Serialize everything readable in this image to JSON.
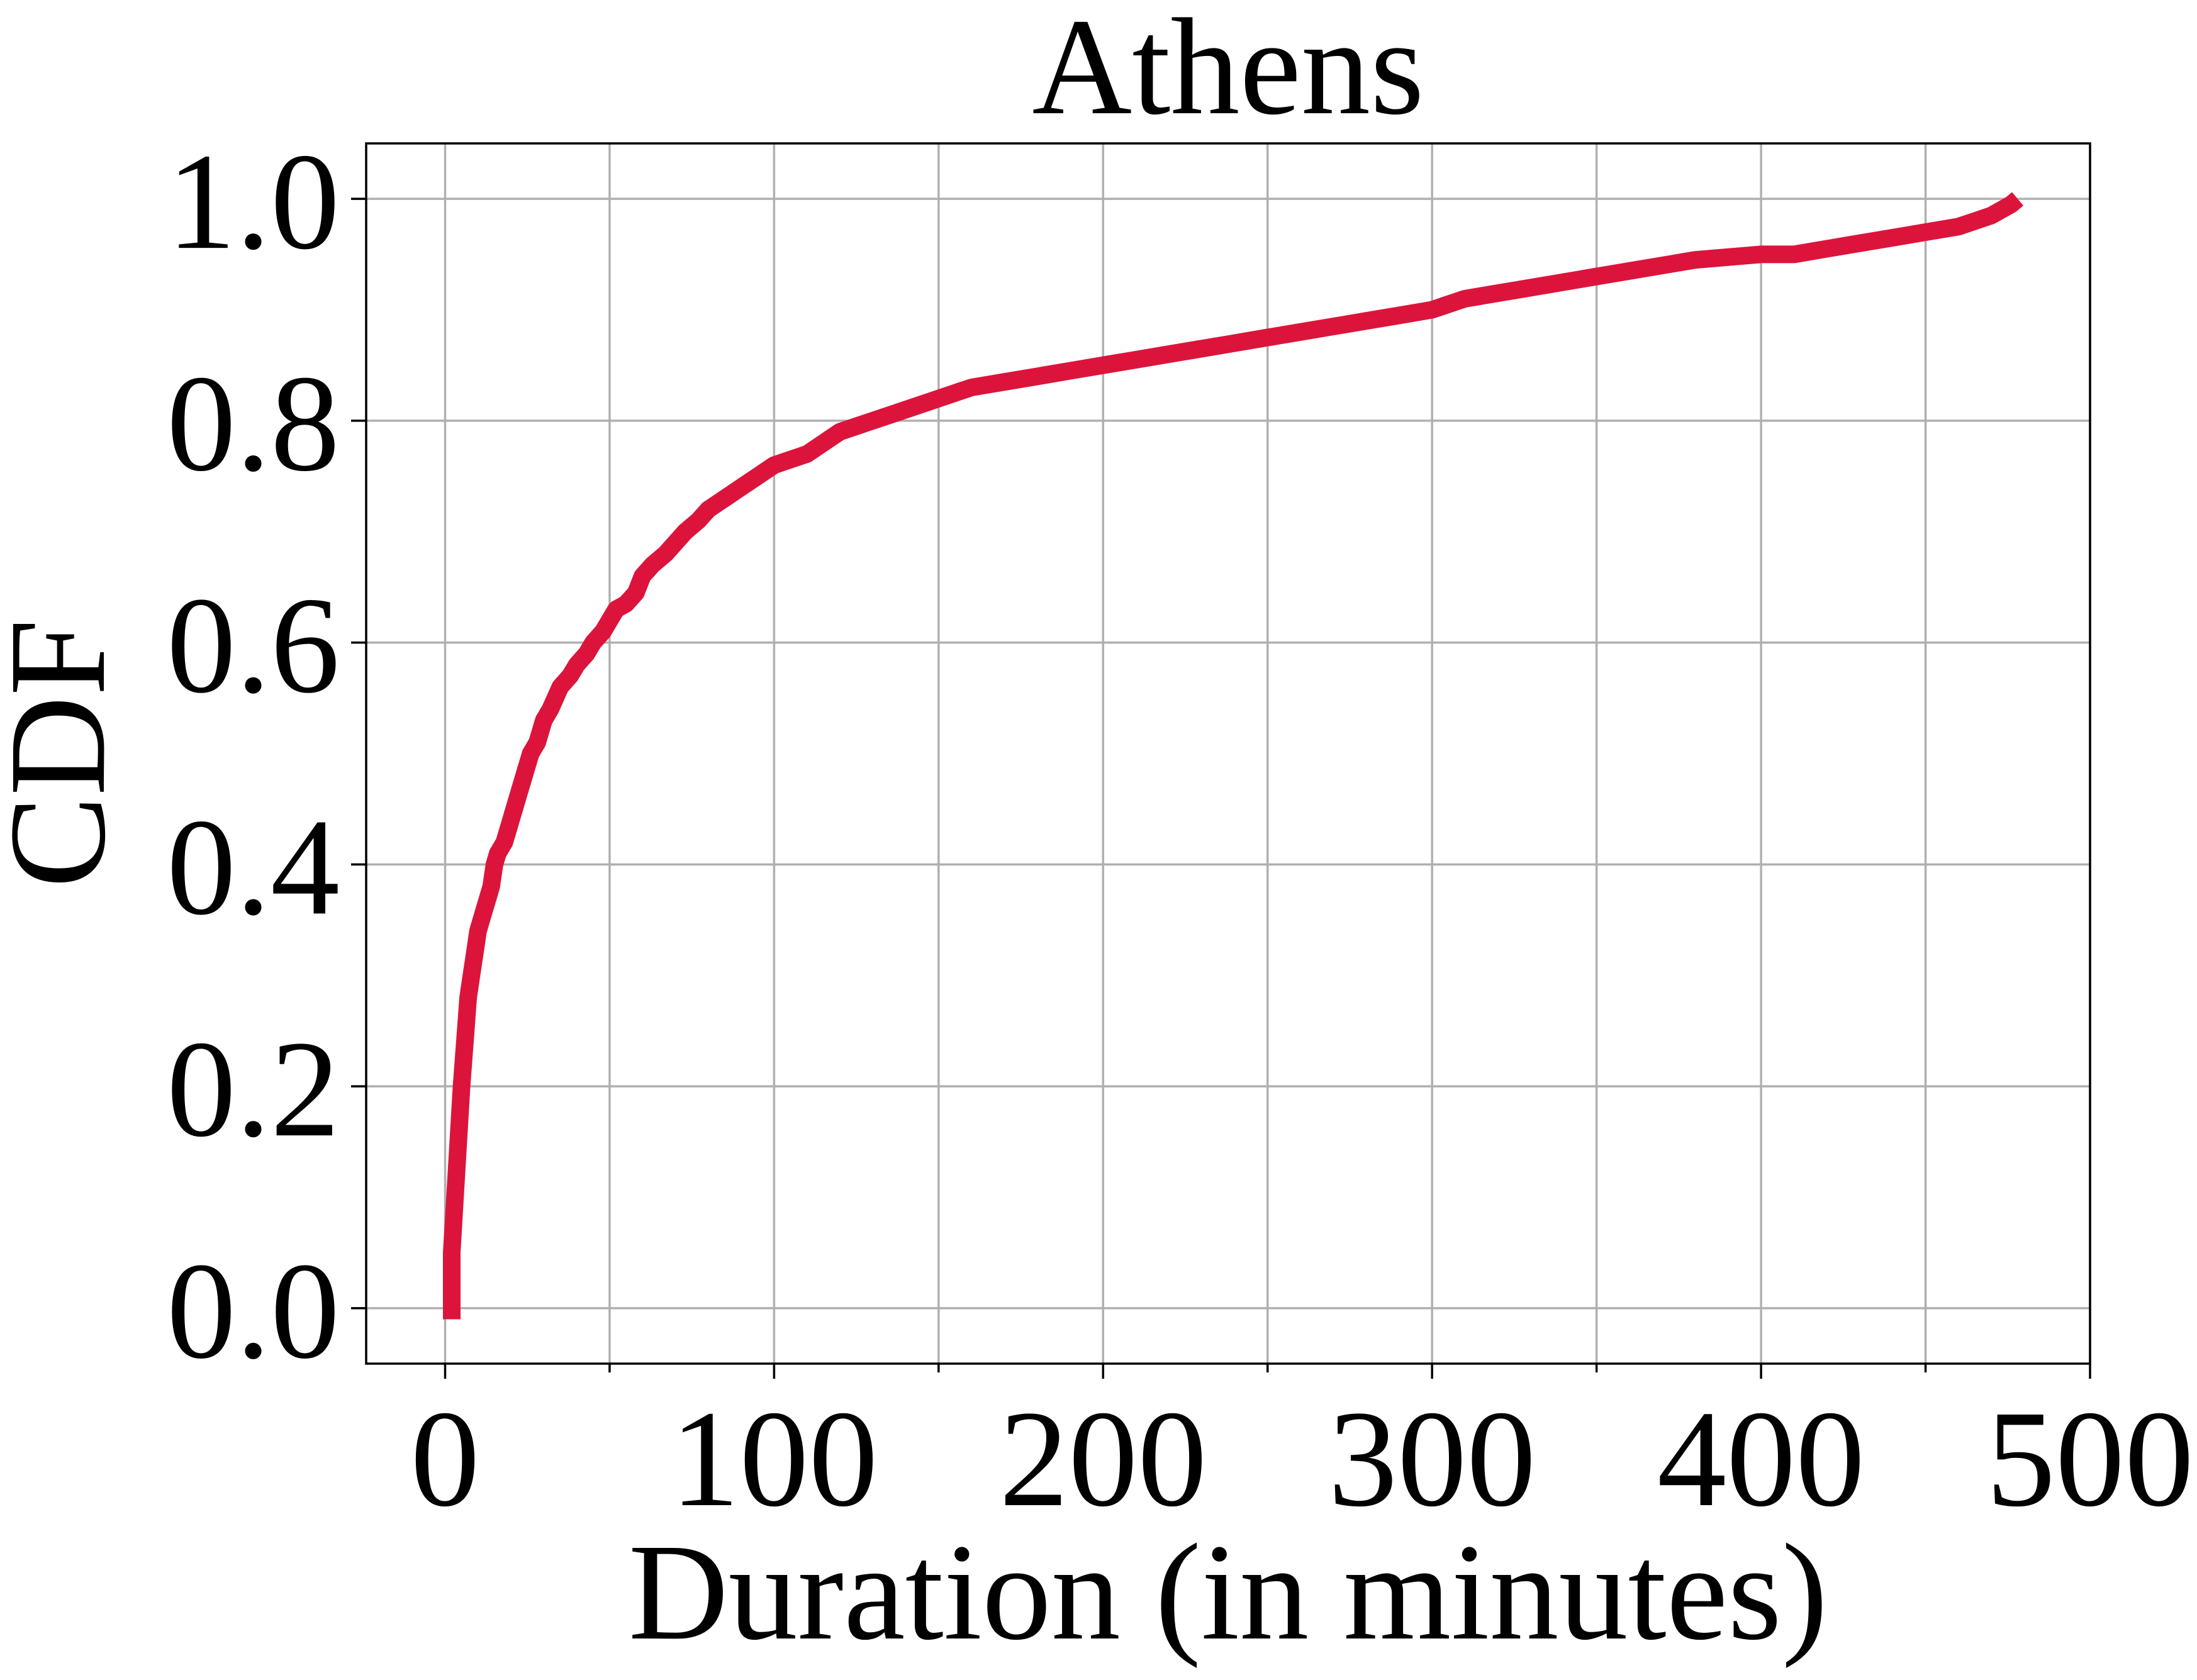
{
  "chart_data": {
    "type": "line",
    "title": "Athens",
    "xlabel": "Duration (in minutes)",
    "ylabel": "CDF",
    "xlim": [
      -24,
      500
    ],
    "ylim": [
      -0.05,
      1.05
    ],
    "x_ticks": [
      0,
      100,
      200,
      300,
      400,
      500
    ],
    "y_ticks": [
      0.0,
      0.2,
      0.4,
      0.6,
      0.8,
      1.0
    ],
    "x_tick_labels": [
      "0",
      "100",
      "200",
      "300",
      "400",
      "500"
    ],
    "y_tick_labels": [
      "0.0",
      "0.2",
      "0.4",
      "0.6",
      "0.8",
      "1.0"
    ],
    "grid": true,
    "line_color": "#dc143c",
    "series": [
      {
        "x": [
          2,
          2,
          3,
          4,
          5,
          6,
          7,
          8,
          9,
          10,
          12,
          13,
          14,
          15,
          16,
          18,
          20,
          22,
          24,
          26,
          28,
          30,
          32,
          35,
          38,
          40,
          43,
          45,
          48,
          50,
          52,
          55,
          58,
          60,
          63,
          67,
          70,
          73,
          77,
          80,
          85,
          90,
          95,
          100,
          105,
          110,
          115,
          120,
          125,
          130,
          140,
          150,
          160,
          170,
          180,
          190,
          200,
          210,
          220,
          230,
          240,
          250,
          260,
          270,
          280,
          290,
          300,
          310,
          320,
          330,
          340,
          350,
          360,
          370,
          380,
          400,
          410,
          420,
          430,
          440,
          450,
          460,
          465,
          470,
          476,
          478
        ],
        "y": [
          -0.01,
          0.05,
          0.1,
          0.15,
          0.2,
          0.24,
          0.28,
          0.3,
          0.32,
          0.34,
          0.36,
          0.37,
          0.38,
          0.4,
          0.41,
          0.42,
          0.44,
          0.46,
          0.48,
          0.5,
          0.51,
          0.53,
          0.54,
          0.56,
          0.57,
          0.58,
          0.59,
          0.6,
          0.61,
          0.62,
          0.63,
          0.635,
          0.645,
          0.66,
          0.67,
          0.68,
          0.69,
          0.7,
          0.71,
          0.72,
          0.73,
          0.74,
          0.75,
          0.76,
          0.765,
          0.77,
          0.78,
          0.79,
          0.795,
          0.8,
          0.81,
          0.82,
          0.83,
          0.835,
          0.84,
          0.845,
          0.85,
          0.855,
          0.86,
          0.865,
          0.87,
          0.875,
          0.88,
          0.885,
          0.89,
          0.895,
          0.9,
          0.91,
          0.915,
          0.92,
          0.925,
          0.93,
          0.935,
          0.94,
          0.945,
          0.95,
          0.95,
          0.955,
          0.96,
          0.965,
          0.97,
          0.975,
          0.98,
          0.985,
          0.995,
          1.0
        ]
      }
    ]
  }
}
